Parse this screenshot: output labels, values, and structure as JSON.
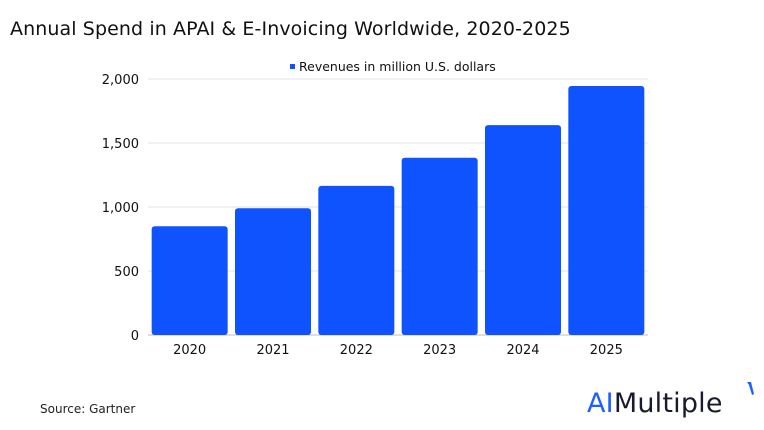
{
  "title": "Annual Spend in APAI & E-Invoicing Worldwide, 2020-2025",
  "source": "Source: Gartner",
  "logo": {
    "prefix": "AI",
    "suffix": "Multiple"
  },
  "colors": {
    "bar": "#0f53ff",
    "accent": "#1f5eff"
  },
  "chart_data": {
    "type": "bar",
    "title": "Annual Spend in APAI & E-Invoicing Worldwide, 2020-2025",
    "categories": [
      "2020",
      "2021",
      "2022",
      "2023",
      "2024",
      "2025"
    ],
    "series": [
      {
        "name": "Revenues in million U.S. dollars",
        "values": [
          850,
          990,
          1165,
          1385,
          1640,
          1945
        ]
      }
    ],
    "ylim": [
      0,
      2000
    ],
    "yticks": [
      0,
      500,
      1000,
      1500,
      2000
    ],
    "ytick_labels": [
      "0",
      "500",
      "1,000",
      "1,500",
      "2,000"
    ],
    "grid": true,
    "legend_position": "top-center"
  }
}
